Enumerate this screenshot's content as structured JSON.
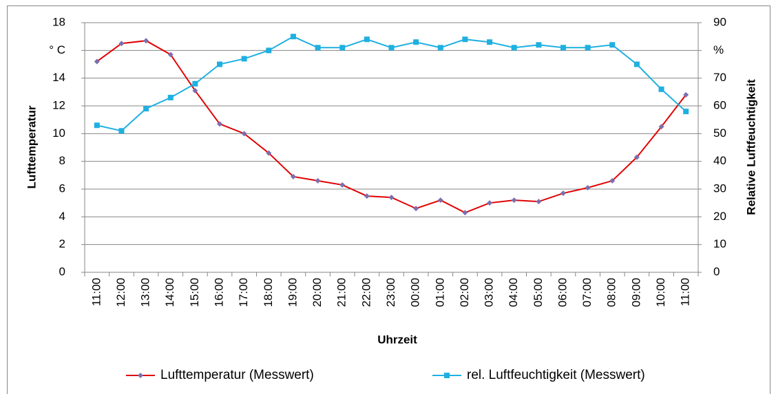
{
  "chart_data": {
    "type": "line",
    "categories": [
      "11:00",
      "12:00",
      "13:00",
      "14:00",
      "15:00",
      "16:00",
      "17:00",
      "18:00",
      "19:00",
      "20:00",
      "21:00",
      "22:00",
      "23:00",
      "00:00",
      "01:00",
      "02:00",
      "03:00",
      "04:00",
      "05:00",
      "06:00",
      "07:00",
      "08:00",
      "09:00",
      "10:00",
      "11:00"
    ],
    "series": [
      {
        "name": "Lufttemperatur (Messwert)",
        "color": "#e00000",
        "marker_color": "#7b6fae",
        "values": [
          15.2,
          16.5,
          16.7,
          15.7,
          13.1,
          10.7,
          10.0,
          8.6,
          6.9,
          6.6,
          6.3,
          5.5,
          5.4,
          4.6,
          5.2,
          4.3,
          5.0,
          5.2,
          5.1,
          5.7,
          6.1,
          6.6,
          8.3,
          10.5,
          12.8
        ]
      },
      {
        "name": "rel. Luftfeuchtigkeit (Messwert)",
        "color": "#1fb0e0",
        "marker_color": "#1fb0e0",
        "axis": "y2",
        "values": [
          53,
          51,
          59,
          63,
          68,
          75,
          77,
          80,
          85,
          81,
          81,
          84,
          81,
          83,
          81,
          84,
          83,
          81,
          82,
          81,
          81,
          82,
          75,
          66,
          58
        ]
      }
    ],
    "x_label": "Uhrzeit",
    "y_label": "Lufttemperatur",
    "y2_label": "Relative Luftfeuchtigkeit",
    "ylim": [
      0,
      18
    ],
    "yticks": [
      0,
      2,
      4,
      6,
      8,
      10,
      12,
      14,
      {
        "value": 16,
        "label": "° C"
      },
      18
    ],
    "y2lim": [
      0,
      90
    ],
    "y2ticks": [
      0,
      10,
      20,
      30,
      40,
      50,
      60,
      70,
      {
        "value": 80,
        "label": "%"
      },
      90
    ],
    "grid": true,
    "legend": "bottom"
  }
}
